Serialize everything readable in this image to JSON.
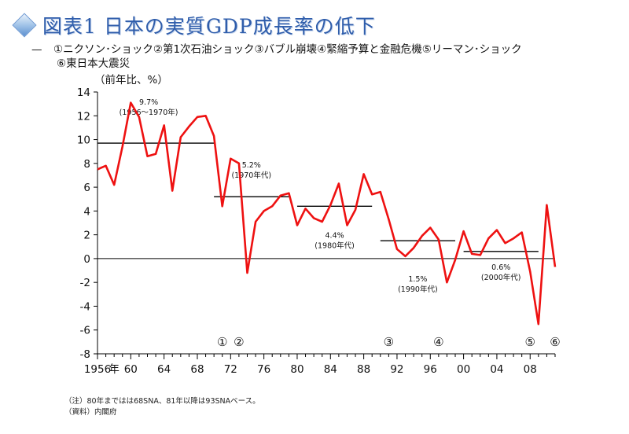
{
  "title": "図表1 日本の実質GDP成長率の低下",
  "legend": {
    "dash": "—",
    "line1": "①ニクソン･ショック②第1次石油ショック③バブル崩壊④緊縮予算と金融危機⑤リーマン･ショック",
    "line2": "⑥東日本大震災"
  },
  "notes": [
    "（注）80年まではは68SNA、81年以降は93SNAベース。",
    "（資料）内閣府"
  ],
  "colors": {
    "series": "#ee1111",
    "axis": "#000000",
    "title": "#2f5dab"
  },
  "chart_data": {
    "type": "line",
    "ylabel": "（前年比、%）",
    "ylim": [
      -8,
      14
    ],
    "xlim": [
      1956,
      2011
    ],
    "yticks": [
      -8,
      -6,
      -4,
      -2,
      0,
      2,
      4,
      6,
      8,
      10,
      12,
      14
    ],
    "xtick_labels": [
      {
        "x": 1956,
        "label": "1956"
      },
      {
        "x": 1958,
        "label": "年"
      },
      {
        "x": 1960,
        "label": "60"
      },
      {
        "x": 1964,
        "label": "64"
      },
      {
        "x": 1968,
        "label": "68"
      },
      {
        "x": 1972,
        "label": "72"
      },
      {
        "x": 1976,
        "label": "76"
      },
      {
        "x": 1980,
        "label": "80"
      },
      {
        "x": 1984,
        "label": "84"
      },
      {
        "x": 1988,
        "label": "88"
      },
      {
        "x": 1992,
        "label": "92"
      },
      {
        "x": 1996,
        "label": "96"
      },
      {
        "x": 2000,
        "label": "00"
      },
      {
        "x": 2004,
        "label": "04"
      },
      {
        "x": 2008,
        "label": "08"
      }
    ],
    "series": [
      {
        "x": [
          1956,
          1957,
          1958,
          1959,
          1960,
          1961,
          1962,
          1963,
          1964,
          1965,
          1966,
          1967,
          1968,
          1969,
          1970,
          1971,
          1972,
          1973,
          1974,
          1975,
          1976,
          1977,
          1978,
          1979,
          1980,
          1981,
          1982,
          1983,
          1984,
          1985,
          1986,
          1987,
          1988,
          1989,
          1990,
          1991,
          1992,
          1993,
          1994,
          1995,
          1996,
          1997,
          1998,
          1999,
          2000,
          2001,
          2002,
          2003,
          2004,
          2005,
          2006,
          2007,
          2008,
          2009,
          2010,
          2011
        ],
        "values": [
          7.5,
          7.8,
          6.2,
          9.4,
          13.1,
          11.9,
          8.6,
          8.8,
          11.2,
          5.7,
          10.2,
          11.1,
          11.9,
          12.0,
          10.3,
          4.4,
          8.4,
          8.0,
          -1.2,
          3.1,
          4.0,
          4.4,
          5.3,
          5.5,
          2.8,
          4.2,
          3.4,
          3.1,
          4.5,
          6.3,
          2.8,
          4.1,
          7.1,
          5.4,
          5.6,
          3.3,
          0.8,
          0.2,
          0.9,
          1.9,
          2.6,
          1.6,
          -2.0,
          -0.1,
          2.3,
          0.4,
          0.3,
          1.7,
          2.4,
          1.3,
          1.7,
          2.2,
          -1.1,
          -5.5,
          4.5,
          -0.7
        ]
      }
    ],
    "averages": [
      {
        "from": 1956,
        "to": 1970,
        "value": 9.7,
        "label": "9.7%",
        "sublabel": "(1956～1970年)"
      },
      {
        "from": 1970,
        "to": 1979,
        "value": 5.2,
        "label": "5.2%",
        "sublabel": "(1970年代)"
      },
      {
        "from": 1980,
        "to": 1989,
        "value": 4.4,
        "label": "4.4%",
        "sublabel": "(1980年代)"
      },
      {
        "from": 1990,
        "to": 1999,
        "value": 1.5,
        "label": "1.5%",
        "sublabel": "(1990年代)"
      },
      {
        "from": 2000,
        "to": 2009,
        "value": 0.6,
        "label": "0.6%",
        "sublabel": "(2000年代)"
      }
    ],
    "event_markers": [
      {
        "x": 1971,
        "label": "①"
      },
      {
        "x": 1973,
        "label": "②"
      },
      {
        "x": 1991,
        "label": "③"
      },
      {
        "x": 1997,
        "label": "④"
      },
      {
        "x": 2008,
        "label": "⑤"
      },
      {
        "x": 2011,
        "label": "⑥"
      }
    ]
  }
}
